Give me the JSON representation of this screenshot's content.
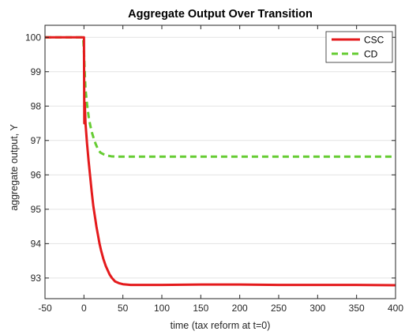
{
  "chart_data": {
    "type": "line",
    "title": "Aggregate Output Over Transition",
    "xlabel": "time (tax reform at t=0)",
    "ylabel": "aggregate output, Y",
    "xlim": [
      -50,
      400
    ],
    "ylim": [
      92.4,
      100.35
    ],
    "xticks": [
      -50,
      0,
      50,
      100,
      150,
      200,
      250,
      300,
      350,
      400
    ],
    "xtick_labels": [
      "-50",
      "0",
      "50",
      "100",
      "150",
      "200",
      "250",
      "300",
      "350",
      "400"
    ],
    "yticks": [
      93,
      94,
      95,
      96,
      97,
      98,
      99,
      100
    ],
    "ytick_labels": [
      "93",
      "94",
      "95",
      "96",
      "97",
      "98",
      "99",
      "100"
    ],
    "grid": "horizontal",
    "legend_position": "top-right",
    "series": [
      {
        "name": "CSC",
        "color": "#e41a1c",
        "style": "solid",
        "x": [
          -50,
          -1,
          0,
          0.5,
          1,
          2,
          3,
          4,
          5,
          6,
          8,
          10,
          12,
          14,
          16,
          18,
          20,
          22,
          25,
          28,
          30,
          33,
          36,
          40,
          45,
          50,
          60,
          70,
          80,
          100,
          150,
          200,
          250,
          300,
          350,
          400
        ],
        "y": [
          100,
          100,
          100,
          97.5,
          98.1,
          97.5,
          97.2,
          96.9,
          96.65,
          96.4,
          95.95,
          95.5,
          95.1,
          94.8,
          94.5,
          94.25,
          94.0,
          93.8,
          93.55,
          93.35,
          93.25,
          93.1,
          93.0,
          92.9,
          92.85,
          92.82,
          92.8,
          92.8,
          92.8,
          92.8,
          92.81,
          92.81,
          92.8,
          92.8,
          92.8,
          92.79
        ]
      },
      {
        "name": "CD",
        "color": "#66cc33",
        "style": "dashed",
        "x": [
          -50,
          -1,
          0,
          1,
          2,
          4,
          6,
          8,
          10,
          12,
          15,
          18,
          21,
          25,
          30,
          35,
          40,
          50,
          60,
          80,
          100,
          150,
          200,
          250,
          300,
          350,
          400
        ],
        "y": [
          100,
          100,
          99.6,
          99.0,
          98.5,
          98.05,
          97.7,
          97.45,
          97.25,
          97.1,
          96.9,
          96.75,
          96.65,
          96.6,
          96.56,
          96.54,
          96.53,
          96.53,
          96.53,
          96.53,
          96.53,
          96.53,
          96.53,
          96.53,
          96.53,
          96.53,
          96.53
        ]
      }
    ]
  }
}
